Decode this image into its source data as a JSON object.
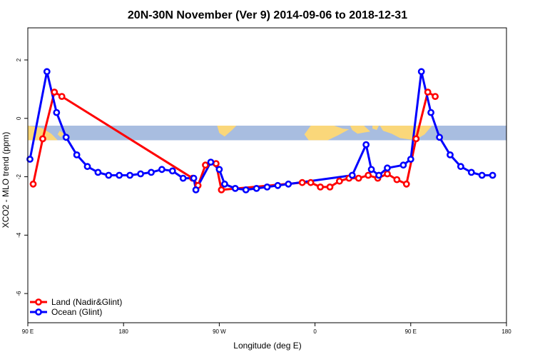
{
  "chart_data": {
    "type": "line",
    "title": "20N-30N November (Ver 9)   2014-09-06 to 2018-12-31",
    "xlabel": "Longitude (deg E)",
    "ylabel": "XCO2 - MLO trend (ppm)",
    "xlim": [
      90,
      540
    ],
    "ylim": [
      -7,
      3.1
    ],
    "x_ticks": [
      {
        "value": 90,
        "label": "90 E"
      },
      {
        "value": 180,
        "label": "180"
      },
      {
        "value": 270,
        "label": "90 W"
      },
      {
        "value": 360,
        "label": "0"
      },
      {
        "value": 450,
        "label": "90 E"
      },
      {
        "value": 540,
        "label": "180"
      }
    ],
    "y_ticks": [
      {
        "value": 2,
        "label": "2"
      },
      {
        "value": 0,
        "label": "0"
      },
      {
        "value": -2,
        "label": "-2"
      },
      {
        "value": -4,
        "label": "-4"
      },
      {
        "value": -6,
        "label": "-6"
      }
    ],
    "land_band": {
      "y_top": -0.25,
      "y_bottom": -0.75,
      "ocean_color": "#a8bde0",
      "land_color": "#fad77a"
    },
    "legend_position": "bottom-left",
    "series": [
      {
        "name": "Land (Nadir&Glint)",
        "color": "#ff0000",
        "points": [
          [
            95,
            -2.25
          ],
          [
            104,
            -0.7
          ],
          [
            115,
            0.9
          ],
          [
            122,
            0.75
          ],
          [
            245,
            -2.05
          ],
          [
            250,
            -2.3
          ],
          [
            257,
            -1.6
          ],
          [
            267,
            -1.55
          ],
          [
            272,
            -2.45
          ],
          [
            348,
            -2.2
          ],
          [
            356,
            -2.2
          ],
          [
            365,
            -2.35
          ],
          [
            374,
            -2.35
          ],
          [
            383,
            -2.15
          ],
          [
            392,
            -2.05
          ],
          [
            401,
            -2.05
          ],
          [
            410,
            -1.95
          ],
          [
            419,
            -2.05
          ],
          [
            428,
            -1.9
          ],
          [
            437,
            -2.1
          ],
          [
            446,
            -2.25
          ],
          [
            455,
            -0.7
          ],
          [
            466,
            0.9
          ],
          [
            473,
            0.75
          ]
        ]
      },
      {
        "name": "Ocean (Glint)",
        "color": "#0000ff",
        "points": [
          [
            92,
            -1.4
          ],
          [
            108,
            1.6
          ],
          [
            117,
            0.2
          ],
          [
            126,
            -0.65
          ],
          [
            136,
            -1.25
          ],
          [
            146,
            -1.65
          ],
          [
            156,
            -1.85
          ],
          [
            166,
            -1.95
          ],
          [
            176,
            -1.95
          ],
          [
            186,
            -1.95
          ],
          [
            196,
            -1.9
          ],
          [
            206,
            -1.85
          ],
          [
            216,
            -1.75
          ],
          [
            226,
            -1.8
          ],
          [
            236,
            -2.05
          ],
          [
            246,
            -2.05
          ],
          [
            248,
            -2.45
          ],
          [
            262,
            -1.5
          ],
          [
            270,
            -1.75
          ],
          [
            275,
            -2.25
          ],
          [
            285,
            -2.4
          ],
          [
            295,
            -2.45
          ],
          [
            305,
            -2.4
          ],
          [
            315,
            -2.35
          ],
          [
            325,
            -2.3
          ],
          [
            335,
            -2.25
          ],
          [
            395,
            -1.95
          ],
          [
            408,
            -0.9
          ],
          [
            413,
            -1.75
          ],
          [
            420,
            -1.95
          ],
          [
            428,
            -1.7
          ],
          [
            443,
            -1.6
          ],
          [
            450,
            -1.4
          ],
          [
            460,
            1.6
          ],
          [
            469,
            0.2
          ],
          [
            477,
            -0.65
          ],
          [
            487,
            -1.25
          ],
          [
            497,
            -1.65
          ],
          [
            507,
            -1.85
          ],
          [
            517,
            -1.95
          ],
          [
            527,
            -1.95
          ]
        ]
      }
    ]
  }
}
